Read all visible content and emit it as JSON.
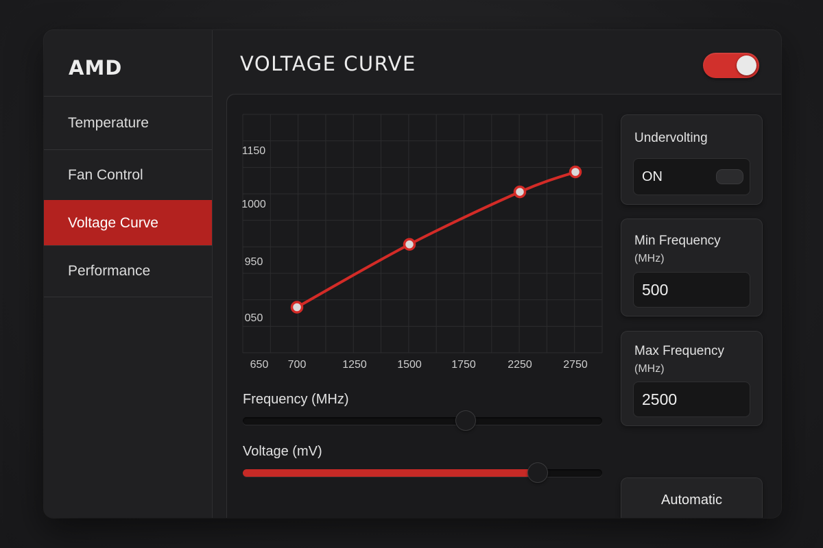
{
  "app": {
    "brand": "AMD",
    "section_title": "VOLTAGE CURVE"
  },
  "sidebar": {
    "items": [
      {
        "label": "Temperature",
        "active": false
      },
      {
        "label": "Fan Control",
        "active": false
      },
      {
        "label": "Voltage Curve",
        "active": true
      },
      {
        "label": "Performance",
        "active": false
      }
    ]
  },
  "header": {
    "master_toggle_on": true
  },
  "chart_data": {
    "type": "line",
    "x_tick_labels": [
      "650",
      "700",
      "1250",
      "1500",
      "1750",
      "2250",
      "2750"
    ],
    "y_tick_labels": [
      "1150",
      "1000",
      "950",
      "050"
    ],
    "points": [
      {
        "x": "700",
        "y": 875
      },
      {
        "x": "1500",
        "y": 968
      },
      {
        "x": "2250",
        "y": 1044
      },
      {
        "x": "2750",
        "y": 1100
      }
    ],
    "grid": true,
    "series_color": "#d32b27"
  },
  "controls": {
    "frequency": {
      "label": "Frequency (MHz)",
      "level": 0.62
    },
    "voltage": {
      "label": "Voltage (mV)",
      "level": 0.82
    }
  },
  "cards": {
    "undervolting": {
      "title": "Undervolting",
      "value": "ON"
    },
    "min_frequency": {
      "title": "Min Frequency",
      "unit": "(MHz)",
      "value": "500"
    },
    "max_frequency": {
      "title": "Max Frequency",
      "unit": "(MHz)",
      "value": "2500"
    }
  },
  "automatic_button": {
    "label": "Automatic"
  },
  "colors": {
    "accent": "#c62a26",
    "background": "#1e1e20"
  }
}
